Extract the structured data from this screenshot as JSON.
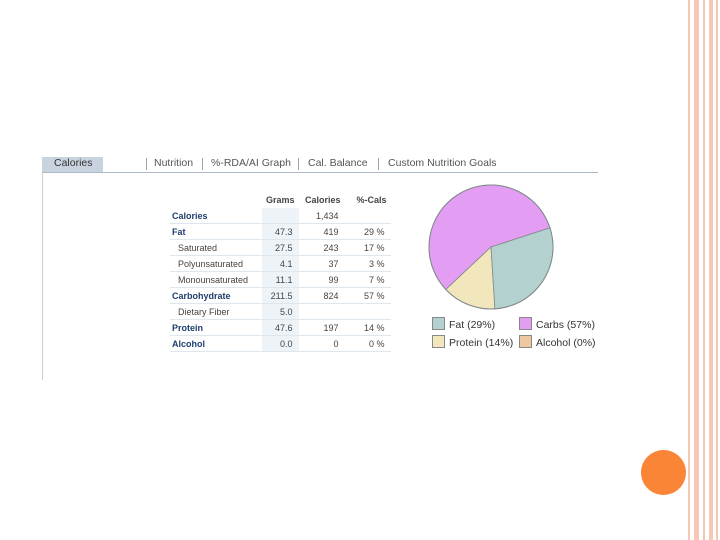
{
  "tabs": [
    {
      "label": "Calories",
      "active": true
    },
    {
      "label": "Nutrition",
      "active": false
    },
    {
      "label": "%-RDA/AI Graph",
      "active": false
    },
    {
      "label": "Cal. Balance",
      "active": false
    },
    {
      "label": "Custom Nutrition Goals",
      "active": false
    }
  ],
  "table": {
    "headers": [
      "",
      "Grams",
      "Calories",
      "%-Cals"
    ],
    "rows": [
      {
        "label": "Calories",
        "grams": "",
        "calories": "1,434",
        "pct": ""
      },
      {
        "label": "Fat",
        "grams": "47.3",
        "calories": "419",
        "pct": "29 %"
      },
      {
        "label": "Saturated",
        "grams": "27.5",
        "calories": "243",
        "pct": "17 %"
      },
      {
        "label": "Polyunsaturated",
        "grams": "4.1",
        "calories": "37",
        "pct": "3 %"
      },
      {
        "label": "Monounsaturated",
        "grams": "11.1",
        "calories": "99",
        "pct": "7 %"
      },
      {
        "label": "Carbohydrate",
        "grams": "211.5",
        "calories": "824",
        "pct": "57 %"
      },
      {
        "label": "Dietary Fiber",
        "grams": "5.0",
        "calories": "",
        "pct": ""
      },
      {
        "label": "Protein",
        "grams": "47.6",
        "calories": "197",
        "pct": "14 %"
      },
      {
        "label": "Alcohol",
        "grams": "0.0",
        "calories": "0",
        "pct": "0 %"
      }
    ]
  },
  "chart_data": {
    "type": "pie",
    "categories": [
      "Carbs",
      "Fat",
      "Protein",
      "Alcohol"
    ],
    "values": [
      57,
      29,
      14,
      0
    ],
    "colors": [
      "#e39df2",
      "#b3d1cf",
      "#f2e6bd",
      "#efc8a2"
    ],
    "legend": [
      "Fat (29%)",
      "Carbs (57%)",
      "Protein (14%)",
      "Alcohol (0%)"
    ]
  },
  "legend_items": [
    {
      "label": "Fat (29%)",
      "color": "#b3d1cf"
    },
    {
      "label": "Carbs (57%)",
      "color": "#e39df2"
    },
    {
      "label": "Protein (14%)",
      "color": "#f2e6bd"
    },
    {
      "label": "Alcohol (0%)",
      "color": "#efc8a2"
    }
  ],
  "decor": {
    "stripe_color": "#f6c7b4",
    "accent_color": "#fb8537"
  }
}
